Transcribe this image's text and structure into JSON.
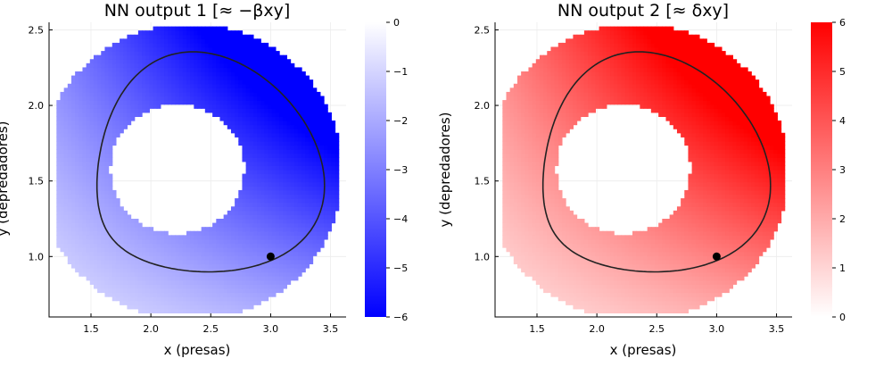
{
  "chart_data": [
    {
      "type": "heatmap",
      "title": "NN output 1  [≈ −βxy]",
      "xlabel": "x (presas)",
      "ylabel": "y (depredadores)",
      "xlim": [
        1.15,
        3.63
      ],
      "ylim": [
        0.6,
        2.55
      ],
      "xticks": [
        1.5,
        2.0,
        2.5,
        3.0,
        3.5
      ],
      "xtick_labels": [
        "1.5",
        "2.0",
        "2.5",
        "3.0",
        "3.5"
      ],
      "yticks": [
        1.0,
        1.5,
        2.0,
        2.5
      ],
      "ytick_labels": [
        "1.0",
        "1.5",
        "2.0",
        "2.5"
      ],
      "grid": true,
      "colormap": {
        "low_color": "#0000ff",
        "high_color": "#ffffff"
      },
      "colorbar": {
        "range": [
          -6,
          0
        ],
        "ticks": [
          0,
          -1,
          -2,
          -3,
          -4,
          -5,
          -6
        ],
        "tick_labels": [
          "0",
          "−1",
          "−2",
          "−3",
          "−4",
          "−5",
          "−6"
        ]
      },
      "trajectory": {
        "color": "#222222",
        "center": [
          2.35,
          1.48
        ],
        "start_point": [
          3.0,
          1.0
        ]
      }
    },
    {
      "type": "heatmap",
      "title": "NN output 2  [≈ δxy]",
      "xlabel": "x (presas)",
      "ylabel": "y (depredadores)",
      "xlim": [
        1.15,
        3.63
      ],
      "ylim": [
        0.6,
        2.55
      ],
      "xticks": [
        1.5,
        2.0,
        2.5,
        3.0,
        3.5
      ],
      "xtick_labels": [
        "1.5",
        "2.0",
        "2.5",
        "3.0",
        "3.5"
      ],
      "yticks": [
        1.0,
        1.5,
        2.0,
        2.5
      ],
      "ytick_labels": [
        "1.0",
        "1.5",
        "2.0",
        "2.5"
      ],
      "grid": true,
      "colormap": {
        "low_color": "#ffffff",
        "high_color": "#ff0000"
      },
      "colorbar": {
        "range": [
          0,
          6
        ],
        "ticks": [
          6,
          5,
          4,
          3,
          2,
          1,
          0
        ],
        "tick_labels": [
          "6",
          "5",
          "4",
          "3",
          "2",
          "1",
          "0"
        ]
      },
      "trajectory": {
        "color": "#222222",
        "center": [
          2.35,
          1.48
        ],
        "start_point": [
          3.0,
          1.0
        ]
      }
    }
  ]
}
